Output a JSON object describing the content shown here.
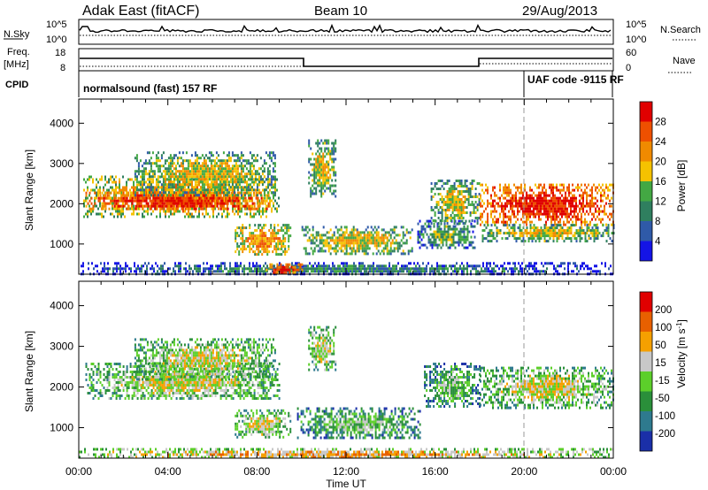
{
  "header": {
    "station": "Adak East (fitACF)",
    "beam": "Beam 10",
    "date": "29/Aug/2013"
  },
  "noise_panel": {
    "left_label": "N.Sky",
    "left_ticks": [
      "10^5",
      "10^0"
    ],
    "right_ticks": [
      "10^5",
      "10^0"
    ],
    "right_label": "N.Search"
  },
  "freq_panel": {
    "left_label_1": "Freq.",
    "left_label_2": "[MHz]",
    "left_ticks": [
      "18",
      "8"
    ],
    "right_ticks": [
      "60",
      "0"
    ],
    "right_label": "Nave"
  },
  "cpid_panel": {
    "label": "CPID",
    "mode_1": "normalsound (fast) 157 RF",
    "mode_2": "UAF code -9115 RF",
    "switch_hour": 20
  },
  "power_panel": {
    "ylabel": "Slant Range [km]",
    "yticks": [
      "4000",
      "3000",
      "2000",
      "1000"
    ],
    "colorbar_label": "Power [dB]",
    "colorbar_ticks": [
      "28",
      "24",
      "20",
      "16",
      "12",
      "8",
      "4"
    ],
    "colors": [
      "#1414e6",
      "#2f5aa8",
      "#2f7f5f",
      "#43a843",
      "#f5c200",
      "#f08a00",
      "#ee5000",
      "#e00000"
    ]
  },
  "velocity_panel": {
    "ylabel": "Slant Range [km]",
    "yticks": [
      "4000",
      "3000",
      "2000",
      "1000"
    ],
    "colorbar_label": "Velocity [m s",
    "colorbar_label_sup": "-1",
    "colorbar_label_end": "]",
    "colorbar_ticks": [
      "200",
      "100",
      "50",
      "15",
      "-15",
      "-50",
      "-100",
      "-200"
    ],
    "colors": [
      "#1a2fa8",
      "#2e7a8e",
      "#2a8f3a",
      "#5ccf2a",
      "#c8c8c8",
      "#f5a000",
      "#e86000",
      "#e00000"
    ]
  },
  "time_axis": {
    "ticks": [
      "00:00",
      "04:00",
      "08:00",
      "12:00",
      "16:00",
      "20:00",
      "00:00"
    ],
    "label": "Time UT"
  },
  "chart_data": {
    "type": "heatmap",
    "x_unit": "hours UT",
    "xlim": [
      0,
      24
    ],
    "ylim": [
      250,
      4600
    ],
    "power_echo_regions": [
      {
        "t0": 0.2,
        "t1": 9.0,
        "r0": 1700,
        "r1": 2700,
        "level": 5
      },
      {
        "t0": 0.3,
        "t1": 8.5,
        "r0": 1850,
        "r1": 2300,
        "level": 7
      },
      {
        "t0": 2.5,
        "t1": 8.8,
        "r0": 2200,
        "r1": 3300,
        "level": 4
      },
      {
        "t0": 7.0,
        "t1": 9.5,
        "r0": 750,
        "r1": 1500,
        "level": 5
      },
      {
        "t0": 10.3,
        "t1": 11.5,
        "r0": 2200,
        "r1": 3600,
        "level": 4
      },
      {
        "t0": 10.0,
        "t1": 15.0,
        "r0": 750,
        "r1": 1450,
        "level": 4
      },
      {
        "t0": 15.2,
        "t1": 17.8,
        "r0": 900,
        "r1": 1600,
        "level": 3
      },
      {
        "t0": 15.8,
        "t1": 18.0,
        "r0": 1500,
        "r1": 2600,
        "level": 4
      },
      {
        "t0": 18.0,
        "t1": 24.0,
        "r0": 1500,
        "r1": 2500,
        "level": 7
      },
      {
        "t0": 18.1,
        "t1": 24.0,
        "r0": 1100,
        "r1": 1500,
        "level": 4
      },
      {
        "t0": 0.0,
        "t1": 24.0,
        "r0": 250,
        "r1": 550,
        "level": 2
      },
      {
        "t0": 8.4,
        "t1": 10.0,
        "r0": 260,
        "r1": 520,
        "level": 7
      }
    ],
    "velocity_echo_regions": [
      {
        "t0": 0.3,
        "t1": 9.0,
        "r0": 1700,
        "r1": 2600,
        "class": 4
      },
      {
        "t0": 2.5,
        "t1": 8.8,
        "r0": 2200,
        "r1": 3200,
        "class": 4
      },
      {
        "t0": 7.0,
        "t1": 9.5,
        "r0": 750,
        "r1": 1450,
        "class": 4
      },
      {
        "t0": 10.3,
        "t1": 11.5,
        "r0": 2400,
        "r1": 3500,
        "class": 4
      },
      {
        "t0": 9.8,
        "t1": 15.3,
        "r0": 750,
        "r1": 1500,
        "class": 3
      },
      {
        "t0": 15.5,
        "t1": 18.0,
        "r0": 1500,
        "r1": 2600,
        "class": 3
      },
      {
        "t0": 18.0,
        "t1": 24.0,
        "r0": 1500,
        "r1": 2500,
        "class": 4
      },
      {
        "t0": 0.0,
        "t1": 24.0,
        "r0": 250,
        "r1": 500,
        "class": 5
      }
    ]
  }
}
